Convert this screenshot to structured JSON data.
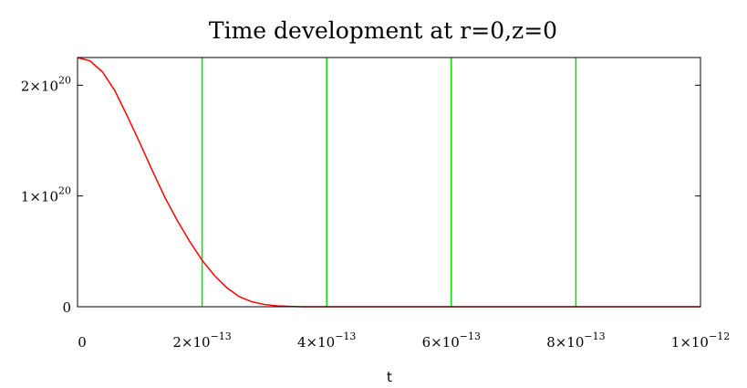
{
  "chart_data": {
    "type": "line",
    "title": "Time development at r=0,z=0",
    "xlabel": "t",
    "ylabel": "",
    "xlim": [
      0,
      1e-12
    ],
    "ylim": [
      0,
      2.25e+20
    ],
    "x_ticks": [
      {
        "value": 0,
        "mantissa": "0",
        "exponent": ""
      },
      {
        "value": 2e-13,
        "mantissa": "2×10",
        "exponent": "−13"
      },
      {
        "value": 4e-13,
        "mantissa": "4×10",
        "exponent": "−13"
      },
      {
        "value": 6e-13,
        "mantissa": "6×10",
        "exponent": "−13"
      },
      {
        "value": 8e-13,
        "mantissa": "8×10",
        "exponent": "−13"
      },
      {
        "value": 1e-12,
        "mantissa": "1×10",
        "exponent": "−12"
      }
    ],
    "y_ticks": [
      {
        "value": 0,
        "mantissa": "0",
        "exponent": ""
      },
      {
        "value": 1e+20,
        "mantissa": "1×10",
        "exponent": "20"
      },
      {
        "value": 2e+20,
        "mantissa": "2×10",
        "exponent": "20"
      }
    ],
    "vertical_lines": {
      "x": [
        2e-13,
        4e-13,
        6e-13,
        8e-13
      ],
      "color": "#00e000"
    },
    "series": [
      {
        "color": "#ff0000",
        "x": [
          0,
          2e-14,
          4e-14,
          6e-14,
          8e-14,
          1e-13,
          1.2e-13,
          1.4e-13,
          1.6e-13,
          1.8e-13,
          2e-13,
          2.2e-13,
          2.4e-13,
          2.6e-13,
          2.8e-13,
          3e-13,
          3.2e-13,
          3.4e-13,
          3.6e-13,
          4e-13,
          6e-13,
          8e-13,
          1e-12
        ],
        "y": [
          2.25e+20,
          2.22e+20,
          2.12e+20,
          1.95e+20,
          1.72e+20,
          1.48e+20,
          1.23e+20,
          9.9e+19,
          7.8e+19,
          5.9e+19,
          4.2e+19,
          2.8e+19,
          1.7e+19,
          9e+18,
          4.5e+18,
          2e+18,
          8e+17,
          3e+17,
          0,
          0,
          0,
          0,
          0
        ]
      }
    ],
    "grid": false
  }
}
